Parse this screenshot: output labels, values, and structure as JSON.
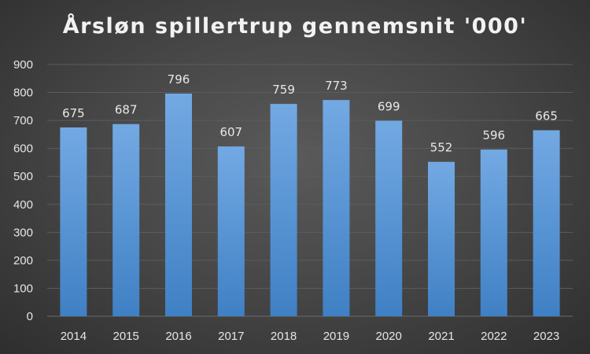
{
  "chart_data": {
    "type": "bar",
    "title": "Årsløn spillertrup gennemsnit '000'",
    "categories": [
      "2014",
      "2015",
      "2016",
      "2017",
      "2018",
      "2019",
      "2020",
      "2021",
      "2022",
      "2023"
    ],
    "values": [
      675,
      687,
      796,
      607,
      759,
      773,
      699,
      552,
      596,
      665
    ],
    "data_labels": [
      "675",
      "687",
      "796",
      "607",
      "759",
      "773",
      "699",
      "552",
      "596",
      "665"
    ],
    "y_ticks": [
      "0",
      "100",
      "200",
      "300",
      "400",
      "500",
      "600",
      "700",
      "800",
      "900"
    ],
    "ylim": [
      0,
      900
    ],
    "xlabel": "",
    "ylabel": "",
    "grid": true,
    "legend": "none",
    "colors": {
      "bar_top": "#73a9e3",
      "bar_bottom": "#3f80c4",
      "grid": "#5c5c5c",
      "text": "#e6e6e6"
    }
  }
}
